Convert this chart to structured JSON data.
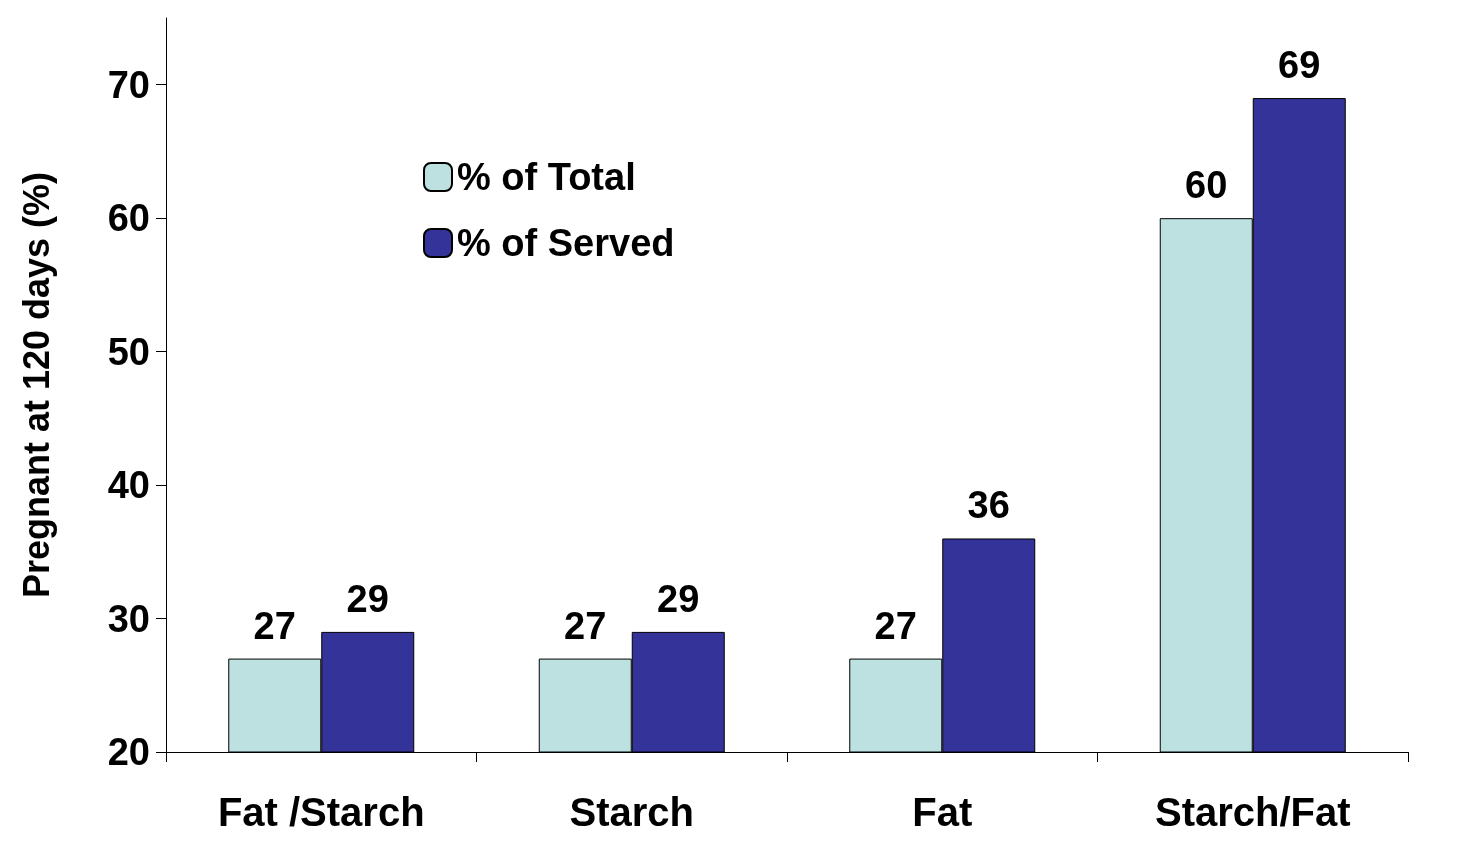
{
  "chart_data": {
    "type": "bar",
    "ylabel": "Pregnant at 120 days (%)",
    "categories": [
      "Fat /Starch",
      "Starch",
      "Fat",
      "Starch/Fat"
    ],
    "series": [
      {
        "name": "% of Total",
        "color": "#bde0e0",
        "values": [
          27,
          27,
          27,
          60
        ]
      },
      {
        "name": "% of Served",
        "color": "#333399",
        "values": [
          29,
          29,
          36,
          69
        ]
      }
    ],
    "ylim": [
      20,
      75
    ],
    "yticks": [
      20,
      30,
      40,
      50,
      60,
      70
    ],
    "grid": false,
    "legend": "top left",
    "data_labels": true
  }
}
